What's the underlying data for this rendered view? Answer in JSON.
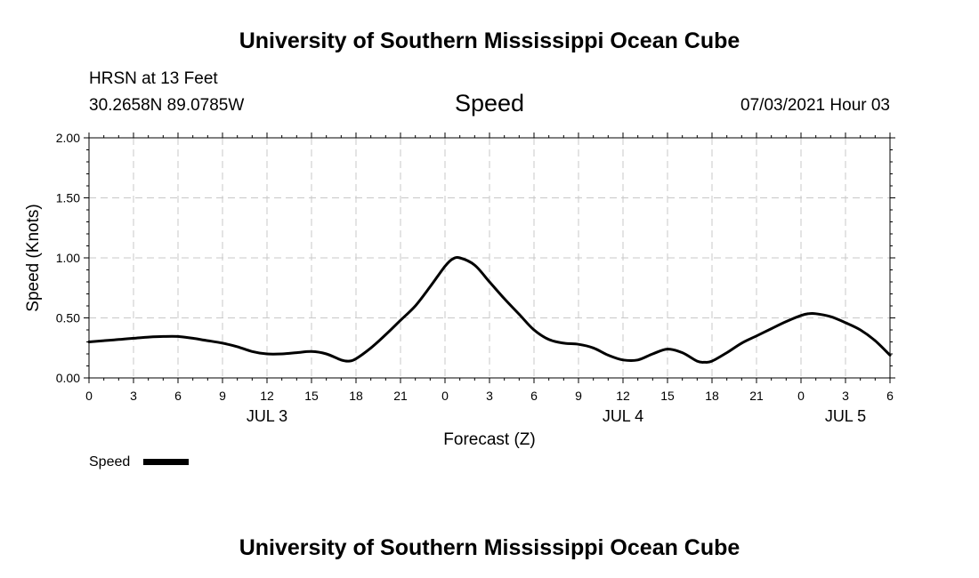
{
  "header": {
    "title": "University of Southern Mississippi Ocean Cube",
    "station": "HRSN at 13 Feet",
    "coords": "30.2658N  89.0785W",
    "issued": "07/03/2021 Hour 03",
    "footer_title": "University of Southern Mississippi Ocean Cube"
  },
  "chart_data": {
    "type": "line",
    "title": "Speed",
    "xlabel": "Forecast (Z)",
    "ylabel": "Speed (Knots)",
    "ylim": [
      0,
      2
    ],
    "y_ticks": [
      "0.00",
      "0.50",
      "1.00",
      "1.50",
      "2.00"
    ],
    "x_range_hours": [
      0,
      54
    ],
    "x_tick_labels": [
      "0",
      "3",
      "6",
      "9",
      "12",
      "15",
      "18",
      "21",
      "0",
      "3",
      "6",
      "9",
      "12",
      "15",
      "18",
      "21",
      "0",
      "3",
      "6"
    ],
    "date_labels": [
      {
        "label": "JUL 3",
        "hour": 12
      },
      {
        "label": "JUL 4",
        "hour": 36
      },
      {
        "label": "JUL 5",
        "hour": 51
      }
    ],
    "grid": true,
    "legend": "bottom-left",
    "series": [
      {
        "name": "Speed",
        "color": "#000000",
        "points": [
          [
            0,
            0.3
          ],
          [
            1,
            0.31
          ],
          [
            2,
            0.32
          ],
          [
            3,
            0.33
          ],
          [
            4,
            0.34
          ],
          [
            5,
            0.345
          ],
          [
            6,
            0.345
          ],
          [
            7,
            0.33
          ],
          [
            8,
            0.31
          ],
          [
            9,
            0.29
          ],
          [
            10,
            0.26
          ],
          [
            11,
            0.22
          ],
          [
            12,
            0.2
          ],
          [
            13,
            0.2
          ],
          [
            14,
            0.21
          ],
          [
            15,
            0.22
          ],
          [
            16,
            0.2
          ],
          [
            17,
            0.15
          ],
          [
            17.5,
            0.14
          ],
          [
            18,
            0.16
          ],
          [
            19,
            0.25
          ],
          [
            20,
            0.36
          ],
          [
            21,
            0.48
          ],
          [
            22,
            0.6
          ],
          [
            23,
            0.76
          ],
          [
            24,
            0.93
          ],
          [
            24.5,
            0.99
          ],
          [
            25,
            1.0
          ],
          [
            26,
            0.94
          ],
          [
            27,
            0.8
          ],
          [
            28,
            0.66
          ],
          [
            29,
            0.53
          ],
          [
            30,
            0.4
          ],
          [
            31,
            0.32
          ],
          [
            32,
            0.29
          ],
          [
            33,
            0.28
          ],
          [
            34,
            0.25
          ],
          [
            35,
            0.19
          ],
          [
            36,
            0.15
          ],
          [
            37,
            0.15
          ],
          [
            38,
            0.2
          ],
          [
            39,
            0.24
          ],
          [
            40,
            0.21
          ],
          [
            41,
            0.14
          ],
          [
            41.5,
            0.13
          ],
          [
            42,
            0.14
          ],
          [
            43,
            0.21
          ],
          [
            44,
            0.29
          ],
          [
            45,
            0.35
          ],
          [
            46,
            0.41
          ],
          [
            47,
            0.47
          ],
          [
            48,
            0.52
          ],
          [
            48.5,
            0.535
          ],
          [
            49,
            0.535
          ],
          [
            50,
            0.51
          ],
          [
            51,
            0.46
          ],
          [
            52,
            0.4
          ],
          [
            53,
            0.31
          ],
          [
            54,
            0.19
          ]
        ]
      }
    ]
  }
}
